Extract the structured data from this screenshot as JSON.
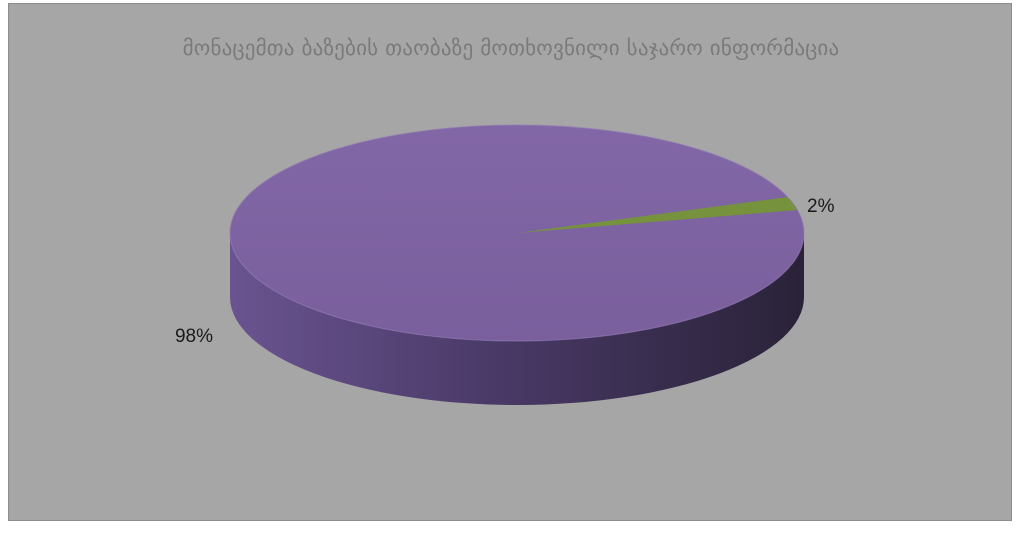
{
  "chart_data": {
    "type": "pie",
    "title": "მონაცემთა ბაზების თაობაზე მოთხოვნილი საჯარო ინფორმაცია",
    "slices": [
      {
        "label": "98%",
        "value": 98,
        "color": "#7d62a0"
      },
      {
        "label": "2%",
        "value": 2,
        "color": "#76923c"
      }
    ],
    "style": "3d"
  }
}
